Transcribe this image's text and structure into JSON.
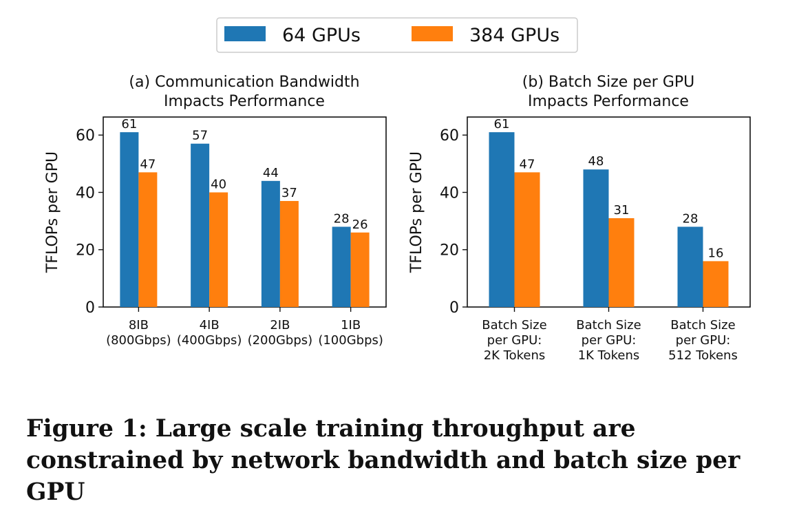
{
  "colors": {
    "series_1": "#1f77b4",
    "series_2": "#ff7f0e"
  },
  "legend": {
    "placement": "top-center",
    "entries": [
      "64 GPUs",
      "384 GPUs"
    ]
  },
  "caption": "Figure 1: Large scale training throughput are constrained by network bandwidth and batch size per GPU",
  "chart_data": [
    {
      "type": "bar",
      "title": [
        "(a) Communication Bandwidth",
        "Impacts Performance"
      ],
      "xlabel": "",
      "ylabel": "TFLOPs per GPU",
      "ylim": [
        0,
        66.3
      ],
      "yticks": [
        0,
        20,
        40,
        60
      ],
      "categories": [
        [
          "8IB",
          "(800Gbps)"
        ],
        [
          "4IB",
          "(400Gbps)"
        ],
        [
          "2IB",
          "(200Gbps)"
        ],
        [
          "1IB",
          "(100Gbps)"
        ]
      ],
      "series": [
        {
          "name": "64 GPUs",
          "values": [
            61,
            57,
            44,
            28
          ]
        },
        {
          "name": "384 GPUs",
          "values": [
            47,
            40,
            37,
            26
          ]
        }
      ],
      "grid": false
    },
    {
      "type": "bar",
      "title": [
        "(b) Batch Size per GPU",
        "Impacts Performance"
      ],
      "xlabel": "",
      "ylabel": "TFLOPs per GPU",
      "ylim": [
        0,
        66.3
      ],
      "yticks": [
        0,
        20,
        40,
        60
      ],
      "categories": [
        [
          "Batch Size",
          "per GPU:",
          "2K Tokens"
        ],
        [
          "Batch Size",
          "per GPU:",
          "1K Tokens"
        ],
        [
          "Batch Size",
          "per GPU:",
          "512 Tokens"
        ]
      ],
      "series": [
        {
          "name": "64 GPUs",
          "values": [
            61,
            48,
            28
          ]
        },
        {
          "name": "384 GPUs",
          "values": [
            47,
            31,
            16
          ]
        }
      ],
      "grid": false
    }
  ]
}
